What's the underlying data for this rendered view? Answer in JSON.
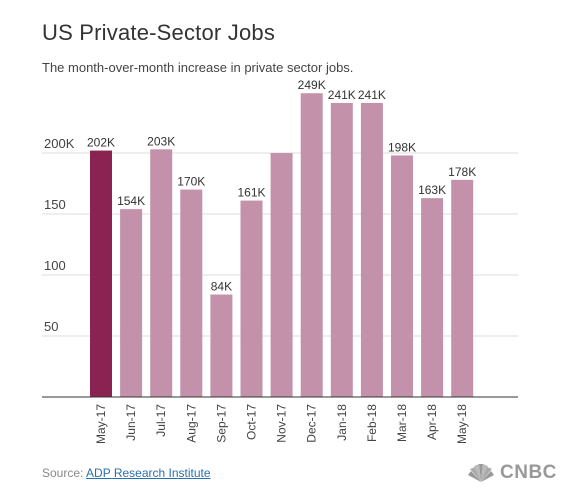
{
  "header": {
    "title": "US Private-Sector Jobs",
    "subtitle": "The month-over-month increase in private sector jobs."
  },
  "chart_data": {
    "type": "bar",
    "categories": [
      "May-17",
      "Jun-17",
      "Jul-17",
      "Aug-17",
      "Sep-17",
      "Oct-17",
      "Nov-17",
      "Dec-17",
      "Jan-18",
      "Feb-18",
      "Mar-18",
      "Apr-18",
      "May-18"
    ],
    "values": [
      202,
      154,
      203,
      170,
      84,
      161,
      200,
      249,
      241,
      241,
      198,
      163,
      178
    ],
    "data_labels": [
      "202K",
      "154K",
      "203K",
      "170K",
      "84K",
      "161K",
      "",
      "249K",
      "241K",
      "241K",
      "198K",
      "163K",
      "178K"
    ],
    "y_ticks": [
      {
        "value": 50,
        "label": "50"
      },
      {
        "value": 100,
        "label": "100"
      },
      {
        "value": 150,
        "label": "150"
      },
      {
        "value": 200,
        "label": "200K"
      }
    ],
    "ylim": [
      0,
      250
    ],
    "grid": true,
    "highlight_index": 0,
    "colors": {
      "bar": "#c391a9",
      "highlight": "#8b2352",
      "grid": "#dddddd",
      "axis": "#333333"
    }
  },
  "footer": {
    "source_label": "Source: ",
    "source_link": "ADP Research Institute",
    "logo_text": "CNBC",
    "logo_icon": "peacock-icon"
  }
}
